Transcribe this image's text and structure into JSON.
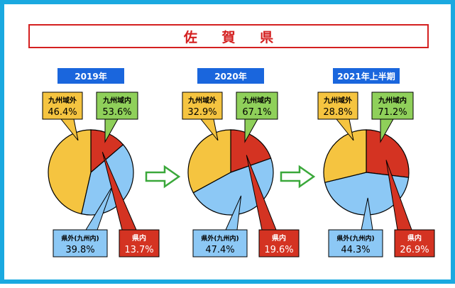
{
  "title": "佐 賀 県",
  "colors": {
    "frame": "#1aa9e0",
    "title": "#d42020",
    "year_badge": "#1a66dd",
    "arrow": "#3aa83a",
    "kyushu_outside": "#f5c440",
    "kyushu_inside": "#8fd05a",
    "in_prefecture": "#d43322",
    "out_prefecture_kyushu": "#8cc8f5"
  },
  "chart_data": [
    {
      "type": "pie",
      "title": "2019年",
      "slices": [
        {
          "label": "県内",
          "value": 13.7,
          "display": "13.7%"
        },
        {
          "label": "県外(九州内)",
          "value": 39.8,
          "display": "39.8%"
        },
        {
          "label": "九州域外",
          "value": 46.4,
          "display": "46.4%"
        }
      ],
      "summary": {
        "label": "九州域内",
        "value": 53.6,
        "display": "53.6%"
      }
    },
    {
      "type": "pie",
      "title": "2020年",
      "slices": [
        {
          "label": "県内",
          "value": 19.6,
          "display": "19.6%"
        },
        {
          "label": "県外(九州内)",
          "value": 47.4,
          "display": "47.4%"
        },
        {
          "label": "九州域外",
          "value": 32.9,
          "display": "32.9%"
        }
      ],
      "summary": {
        "label": "九州域内",
        "value": 67.1,
        "display": "67.1%"
      }
    },
    {
      "type": "pie",
      "title": "2021年上半期",
      "slices": [
        {
          "label": "県内",
          "value": 26.9,
          "display": "26.9%"
        },
        {
          "label": "県外(九州内)",
          "value": 44.3,
          "display": "44.3%"
        },
        {
          "label": "九州域外",
          "value": 28.8,
          "display": "28.8%"
        }
      ],
      "summary": {
        "label": "九州域内",
        "value": 71.2,
        "display": "71.2%"
      }
    }
  ]
}
